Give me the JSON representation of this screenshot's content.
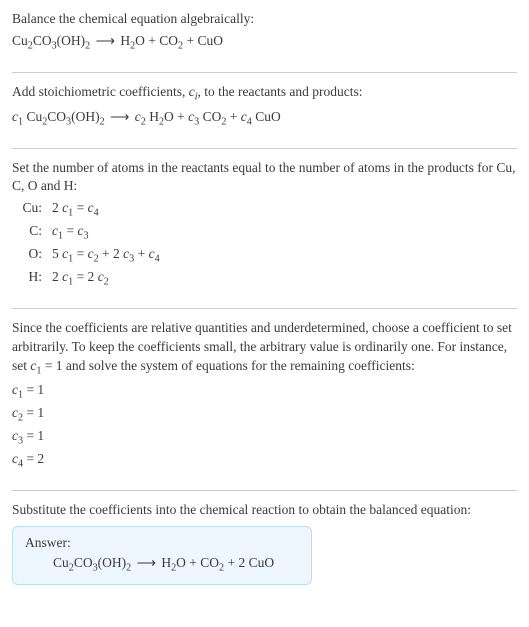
{
  "section1": {
    "line1": "Balance the chemical equation algebraically:",
    "eq1_parts": {
      "l1": "Cu",
      "l1s": "2",
      "l2": "CO",
      "l2s": "3",
      "l3": "(OH)",
      "l3s": "2",
      "arrow": "⟶",
      "r1": "H",
      "r1s": "2",
      "r2": "O + CO",
      "r2s": "2",
      "r3": " + CuO"
    }
  },
  "section2": {
    "line1a": "Add stoichiometric coefficients, ",
    "line1b": ", to the reactants and products:",
    "ci_c": "c",
    "ci_i": "i",
    "eq2_parts": {
      "c1c": "c",
      "c1": "1",
      "l1": " Cu",
      "l1s": "2",
      "l2": "CO",
      "l2s": "3",
      "l3": "(OH)",
      "l3s": "2",
      "arrow": "⟶",
      "c2c": "c",
      "c2": "2",
      "r1": " H",
      "r1s": "2",
      "r2a": "O + ",
      "c3c": "c",
      "c3": "3",
      "r2b": " CO",
      "r2s": "2",
      "r3a": " + ",
      "c4c": "c",
      "c4": "4",
      "r3b": " CuO"
    }
  },
  "section3": {
    "line1": "Set the number of atoms in the reactants equal to the number of atoms in the products for Cu, C, O and H:",
    "rows": [
      {
        "label": "Cu:",
        "eq": {
          "a": "2 ",
          "cA": "c",
          "nA": "1",
          "mid": " = ",
          "cB": "c",
          "nB": "4"
        }
      },
      {
        "label": "C:",
        "eq": {
          "a": "",
          "cA": "c",
          "nA": "1",
          "mid": " = ",
          "cB": "c",
          "nB": "3"
        }
      },
      {
        "label": "O:",
        "eq": {
          "a": "5 ",
          "cA": "c",
          "nA": "1",
          "mid": " = ",
          "cB": "c",
          "nB": "2",
          "tail1": " + 2 ",
          "cC": "c",
          "nC": "3",
          "tail2": " + ",
          "cD": "c",
          "nD": "4"
        }
      },
      {
        "label": "H:",
        "eq": {
          "a": "2 ",
          "cA": "c",
          "nA": "1",
          "mid": " = 2 ",
          "cB": "c",
          "nB": "2"
        }
      }
    ]
  },
  "section4": {
    "line1a": "Since the coefficients are relative quantities and underdetermined, choose a coefficient to set arbitrarily. To keep the coefficients small, the arbitrary value is ordinarily one. For instance, set ",
    "cset_c": "c",
    "cset_n": "1",
    "line1b": " = 1 and solve the system of equations for the remaining coefficients:",
    "coefs": [
      {
        "c": "c",
        "n": "1",
        "v": " = 1"
      },
      {
        "c": "c",
        "n": "2",
        "v": " = 1"
      },
      {
        "c": "c",
        "n": "3",
        "v": " = 1"
      },
      {
        "c": "c",
        "n": "4",
        "v": " = 2"
      }
    ]
  },
  "section5": {
    "line1": "Substitute the coefficients into the chemical reaction to obtain the balanced equation:",
    "answer_label": "Answer:",
    "ans": {
      "l1": "Cu",
      "l1s": "2",
      "l2": "CO",
      "l2s": "3",
      "l3": "(OH)",
      "l3s": "2",
      "arrow": "⟶",
      "r1": "H",
      "r1s": "2",
      "r2": "O + CO",
      "r2s": "2",
      "r3": " + 2 CuO"
    }
  }
}
